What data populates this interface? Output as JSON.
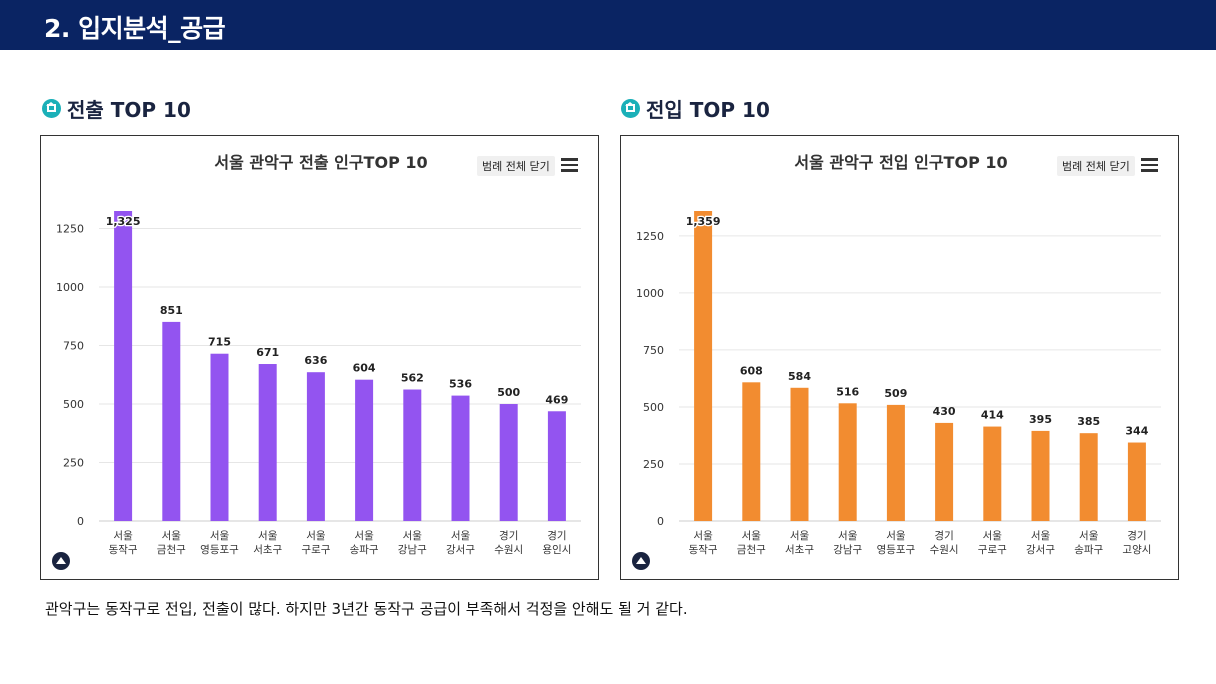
{
  "header": {
    "title": "2. 입지분석_공급"
  },
  "sections": [
    {
      "title": "전출 TOP 10"
    },
    {
      "title": "전입 TOP 10"
    }
  ],
  "legend_button": "범례 전체 닫기",
  "footer": {
    "text": "관악구는 동작구로 전입, 전출이 많다. 하지만 3년간 동작구 공급이 부족해서 걱정을 안해도 될 거 같다."
  },
  "chart_data": [
    {
      "type": "bar",
      "title": "서울 관악구 전출 인구TOP 10",
      "categories": [
        [
          "서울",
          "동작구"
        ],
        [
          "서울",
          "금천구"
        ],
        [
          "서울",
          "영등포구"
        ],
        [
          "서울",
          "서초구"
        ],
        [
          "서울",
          "구로구"
        ],
        [
          "서울",
          "송파구"
        ],
        [
          "서울",
          "강남구"
        ],
        [
          "서울",
          "강서구"
        ],
        [
          "경기",
          "수원시"
        ],
        [
          "경기",
          "용인시"
        ]
      ],
      "values": [
        1325,
        851,
        715,
        671,
        636,
        604,
        562,
        536,
        500,
        469
      ],
      "data_labels": [
        "1,325",
        "851",
        "715",
        "671",
        "636",
        "604",
        "562",
        "536",
        "500",
        "469"
      ],
      "ylim": [
        0,
        1325
      ],
      "yticks": [
        0,
        250,
        500,
        750,
        1000,
        1250
      ],
      "color": "#9354f0",
      "grid": true
    },
    {
      "type": "bar",
      "title": "서울 관악구 전입 인구TOP 10",
      "categories": [
        [
          "서울",
          "동작구"
        ],
        [
          "서울",
          "금천구"
        ],
        [
          "서울",
          "서초구"
        ],
        [
          "서울",
          "강남구"
        ],
        [
          "서울",
          "영등포구"
        ],
        [
          "경기",
          "수원시"
        ],
        [
          "서울",
          "구로구"
        ],
        [
          "서울",
          "강서구"
        ],
        [
          "서울",
          "송파구"
        ],
        [
          "경기",
          "고양시"
        ]
      ],
      "values": [
        1359,
        608,
        584,
        516,
        509,
        430,
        414,
        395,
        385,
        344
      ],
      "data_labels": [
        "1,359",
        "608",
        "584",
        "516",
        "509",
        "430",
        "414",
        "395",
        "385",
        "344"
      ],
      "ylim": [
        0,
        1359
      ],
      "yticks": [
        0,
        250,
        500,
        750,
        1000,
        1250
      ],
      "color": "#f28c30",
      "grid": true
    }
  ]
}
